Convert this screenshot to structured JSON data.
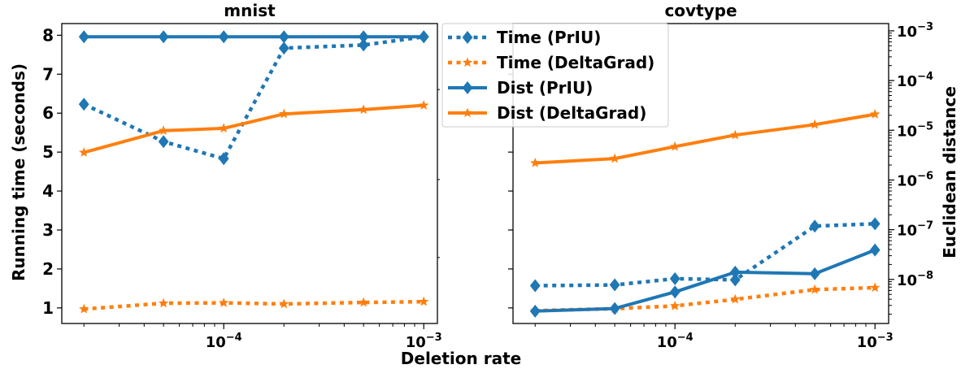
{
  "figure": {
    "xlabel": "Deletion rate",
    "ylabel_left": "Running time (seconds)",
    "ylabel_right": "Euclidean distance",
    "colors": {
      "blue": "#1f77b4",
      "orange": "#ff7f0e"
    }
  },
  "legend": {
    "items": [
      {
        "label": "Time (PrIU)",
        "color": "#1f77b4",
        "style": "dotted",
        "marker": "diamond"
      },
      {
        "label": "Time (DeltaGrad)",
        "color": "#ff7f0e",
        "style": "dotted",
        "marker": "star"
      },
      {
        "label": "Dist (PrIU)",
        "color": "#1f77b4",
        "style": "solid",
        "marker": "diamond"
      },
      {
        "label": "Dist (DeltaGrad)",
        "color": "#ff7f0e",
        "style": "solid",
        "marker": "star"
      }
    ]
  },
  "chart_data": [
    {
      "type": "line",
      "title": "mnist",
      "xscale": "log",
      "x": [
        2e-05,
        5e-05,
        0.0001,
        0.0002,
        0.0005,
        0.001
      ],
      "xlim": [
        1.55e-05,
        0.00117
      ],
      "xticks": [
        {
          "value": 0.0001,
          "label": "10^-4"
        },
        {
          "value": 0.001,
          "label": "10^-3"
        }
      ],
      "ylabel": "Running time (seconds)",
      "ylim": [
        0.6,
        8.3
      ],
      "yticks": [
        1,
        2,
        3,
        4,
        5,
        6,
        7,
        8
      ],
      "series": [
        {
          "name": "Time (PrIU)",
          "axis": "left",
          "values": [
            6.23,
            5.27,
            4.83,
            7.67,
            7.75,
            7.96
          ]
        },
        {
          "name": "Time (DeltaGrad)",
          "axis": "left",
          "values": [
            0.97,
            1.12,
            1.13,
            1.1,
            1.14,
            1.16
          ]
        },
        {
          "name": "Dist (PrIU)",
          "axis": "left",
          "values": [
            7.96,
            7.96,
            7.96,
            7.96,
            7.96,
            7.96
          ]
        },
        {
          "name": "Dist (DeltaGrad)",
          "axis": "left",
          "values": [
            4.99,
            5.55,
            5.61,
            5.98,
            6.09,
            6.2
          ]
        }
      ]
    },
    {
      "type": "line",
      "title": "covtype",
      "xscale": "log",
      "x": [
        2e-05,
        5e-05,
        0.0001,
        0.0002,
        0.0005,
        0.001
      ],
      "xlim": [
        1.55e-05,
        0.00117
      ],
      "xticks": [
        {
          "value": 0.0001,
          "label": "10^-4"
        },
        {
          "value": 0.001,
          "label": "10^-3"
        }
      ],
      "ylabel_right": "Euclidean distance",
      "yscale_right": "log",
      "ylim_right": [
        1.3e-09,
        0.0014
      ],
      "yticks_right": [
        {
          "value": 1e-08,
          "label": "10^-8"
        },
        {
          "value": 1e-07,
          "label": "10^-7"
        },
        {
          "value": 1e-06,
          "label": "10^-6"
        },
        {
          "value": 1e-05,
          "label": "10^-5"
        },
        {
          "value": 0.0001,
          "label": "10^-4"
        },
        {
          "value": 0.001,
          "label": "10^-3"
        }
      ],
      "ylim_left": [
        0.6,
        8.3
      ],
      "series": [
        {
          "name": "Time (PrIU)",
          "axis": "left",
          "values": [
            1.57,
            1.59,
            1.75,
            1.72,
            3.1,
            3.16
          ]
        },
        {
          "name": "Time (DeltaGrad)",
          "axis": "left",
          "values": [
            0.93,
            0.98,
            1.05,
            1.22,
            1.47,
            1.52
          ]
        },
        {
          "name": "Dist (PrIU)",
          "axis": "right",
          "values": [
            2.3e-09,
            2.6e-09,
            5.6e-09,
            1.4e-08,
            1.3e-08,
            3.9e-08
          ]
        },
        {
          "name": "Dist (DeltaGrad)",
          "axis": "right",
          "values": [
            2.2e-06,
            2.7e-06,
            4.7e-06,
            8e-06,
            1.3e-05,
            2.1e-05
          ]
        }
      ]
    }
  ]
}
